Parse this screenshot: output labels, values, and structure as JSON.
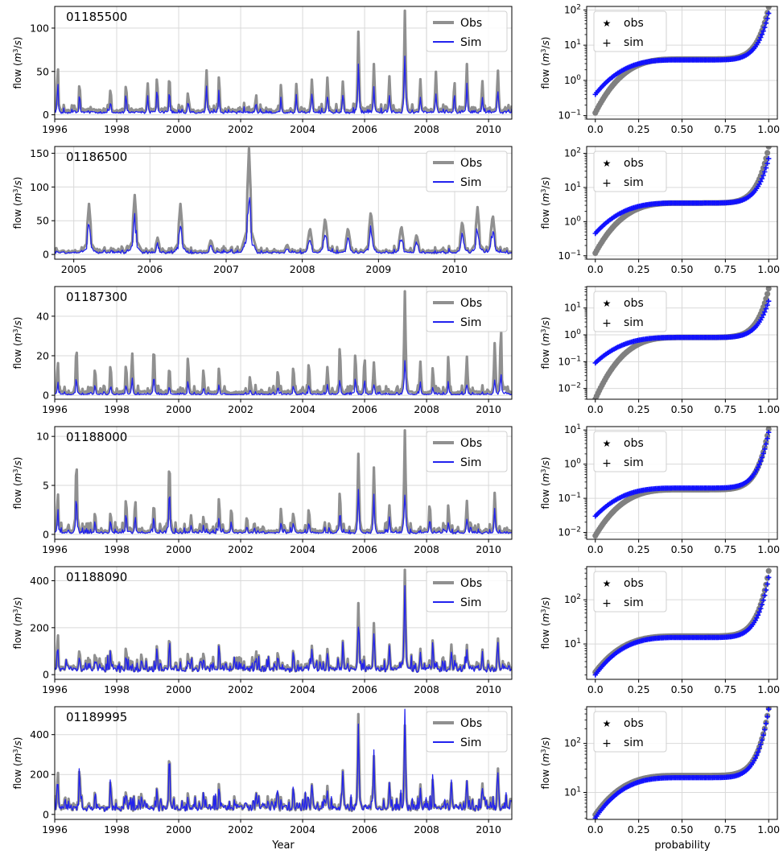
{
  "figure": {
    "xlabel_left": "Year",
    "xlabel_right": "probability"
  },
  "colors": {
    "obs_line": "#909090",
    "sim_line": "#2222ee",
    "obs_marker": "#808080",
    "sim_marker": "#1010ff",
    "grid": "#d9d9d9"
  },
  "chart_data": [
    {
      "type": "line",
      "panel": "timeseries",
      "title": "01185500",
      "xlabel": "",
      "ylabel": "flow (m³/s)",
      "xlim": [
        1996.0,
        2010.75
      ],
      "ylim": [
        -5,
        125
      ],
      "yticks": [
        0,
        50,
        100
      ],
      "xticks": [
        1996,
        1998,
        2000,
        2002,
        2004,
        2006,
        2008,
        2010
      ],
      "legend": "top-right",
      "grid": true,
      "base": 6,
      "noise": 4,
      "peaks": [
        [
          1996.1,
          58
        ],
        [
          1996.8,
          40
        ],
        [
          1997.8,
          33
        ],
        [
          1998.3,
          38
        ],
        [
          1999.0,
          38
        ],
        [
          1999.3,
          47
        ],
        [
          1999.7,
          50
        ],
        [
          2000.3,
          28
        ],
        [
          2000.9,
          52
        ],
        [
          2001.3,
          48
        ],
        [
          2002.5,
          25
        ],
        [
          2003.3,
          37
        ],
        [
          2003.8,
          38
        ],
        [
          2004.3,
          43
        ],
        [
          2004.8,
          45
        ],
        [
          2005.3,
          40
        ],
        [
          2005.8,
          99
        ],
        [
          2006.3,
          60
        ],
        [
          2006.8,
          45
        ],
        [
          2007.3,
          121
        ],
        [
          2007.8,
          41
        ],
        [
          2008.3,
          50
        ],
        [
          2008.9,
          41
        ],
        [
          2009.3,
          60
        ],
        [
          2009.8,
          40
        ],
        [
          2010.3,
          53
        ]
      ],
      "series": [
        {
          "name": "Obs",
          "values_source": "peaks"
        },
        {
          "name": "Sim",
          "scale": 0.55
        }
      ]
    },
    {
      "type": "scatter",
      "panel": "fdc",
      "xlabel": "",
      "ylabel": "flow (m³/s)",
      "xlim": [
        -0.05,
        1.05
      ],
      "yscale": "log",
      "ylim_exp": [
        -1.1,
        2.1
      ],
      "ytick_exps": [
        -1,
        0,
        1,
        2
      ],
      "xticks": [
        "0.0",
        "0.25",
        "0.50",
        "0.75",
        "1.00"
      ],
      "legend": "top-left",
      "series": [
        {
          "name": "obs",
          "min": 0.12,
          "max": 121,
          "median": 4.0
        },
        {
          "name": "sim",
          "min": 0.4,
          "max": 80,
          "median": 3.8
        }
      ]
    },
    {
      "type": "line",
      "panel": "timeseries",
      "title": "01186500",
      "xlabel": "",
      "ylabel": "flow (m³/s)",
      "xlim": [
        2004.75,
        2010.75
      ],
      "ylim": [
        -7,
        160
      ],
      "yticks": [
        0,
        50,
        100,
        150
      ],
      "xticks": [
        2005,
        2006,
        2007,
        2008,
        2009,
        2010
      ],
      "legend": "top-right",
      "grid": true,
      "base": 5,
      "noise": 4,
      "peaks": [
        [
          2005.2,
          75
        ],
        [
          2005.8,
          88
        ],
        [
          2006.1,
          25
        ],
        [
          2006.4,
          75
        ],
        [
          2006.8,
          22
        ],
        [
          2007.3,
          157
        ],
        [
          2007.8,
          15
        ],
        [
          2008.1,
          40
        ],
        [
          2008.3,
          55
        ],
        [
          2008.6,
          40
        ],
        [
          2008.9,
          65
        ],
        [
          2009.3,
          43
        ],
        [
          2009.5,
          30
        ],
        [
          2010.1,
          50
        ],
        [
          2010.3,
          70
        ],
        [
          2010.5,
          60
        ]
      ],
      "series": [
        {
          "name": "Obs",
          "values_source": "peaks"
        },
        {
          "name": "Sim",
          "scale": 0.6
        }
      ]
    },
    {
      "type": "scatter",
      "panel": "fdc",
      "xlabel": "",
      "ylabel": "flow (m³/s)",
      "xlim": [
        -0.05,
        1.05
      ],
      "yscale": "log",
      "ylim_exp": [
        -1.1,
        2.2
      ],
      "ytick_exps": [
        -1,
        0,
        1,
        2
      ],
      "xticks": [
        "0.0",
        "0.25",
        "0.50",
        "0.75",
        "1.00"
      ],
      "legend": "top-left",
      "series": [
        {
          "name": "obs",
          "min": 0.12,
          "max": 157,
          "median": 3.5
        },
        {
          "name": "sim",
          "min": 0.45,
          "max": 70,
          "median": 3.5
        }
      ]
    },
    {
      "type": "line",
      "panel": "timeseries",
      "title": "01187300",
      "xlabel": "",
      "ylabel": "flow (m³/s)",
      "xlim": [
        1996.0,
        2010.75
      ],
      "ylim": [
        -2,
        55
      ],
      "yticks": [
        0,
        20,
        40
      ],
      "xticks": [
        1996,
        1998,
        2000,
        2002,
        2004,
        2006,
        2008,
        2010
      ],
      "legend": "top-right",
      "grid": true,
      "base": 1.5,
      "noise": 2,
      "peaks": [
        [
          1996.1,
          18
        ],
        [
          1996.7,
          27
        ],
        [
          1997.3,
          15
        ],
        [
          1997.8,
          17
        ],
        [
          1998.3,
          17
        ],
        [
          1998.5,
          22
        ],
        [
          1999.2,
          27
        ],
        [
          1999.7,
          16
        ],
        [
          2000.3,
          21
        ],
        [
          2000.8,
          14
        ],
        [
          2001.3,
          15
        ],
        [
          2002.3,
          10
        ],
        [
          2003.2,
          14
        ],
        [
          2003.7,
          16
        ],
        [
          2004.2,
          18
        ],
        [
          2004.8,
          15
        ],
        [
          2005.2,
          27
        ],
        [
          2005.7,
          23
        ],
        [
          2006.0,
          21
        ],
        [
          2006.3,
          17
        ],
        [
          2007.3,
          53
        ],
        [
          2007.8,
          17
        ],
        [
          2008.2,
          15
        ],
        [
          2008.7,
          21
        ],
        [
          2009.3,
          20
        ],
        [
          2010.2,
          28
        ],
        [
          2010.4,
          37
        ]
      ],
      "series": [
        {
          "name": "Obs",
          "values_source": "peaks"
        },
        {
          "name": "Sim",
          "scale": 0.33
        }
      ]
    },
    {
      "type": "scatter",
      "panel": "fdc",
      "xlabel": "",
      "ylabel": "flow (m³/s)",
      "xlim": [
        -0.05,
        1.05
      ],
      "yscale": "log",
      "ylim_exp": [
        -2.4,
        1.8
      ],
      "ytick_exps": [
        -2,
        -1,
        0,
        1
      ],
      "xticks": [
        "0.0",
        "0.25",
        "0.50",
        "0.75",
        "1.00"
      ],
      "legend": "top-left",
      "series": [
        {
          "name": "obs",
          "min": 0.004,
          "max": 53,
          "median": 0.8
        },
        {
          "name": "sim",
          "min": 0.09,
          "max": 18,
          "median": 0.8
        }
      ]
    },
    {
      "type": "line",
      "panel": "timeseries",
      "title": "01188000",
      "xlabel": "",
      "ylabel": "flow (m³/s)",
      "xlim": [
        1996.0,
        2010.75
      ],
      "ylim": [
        -0.5,
        11
      ],
      "yticks": [
        0,
        5,
        10
      ],
      "xticks": [
        1996,
        1998,
        2000,
        2002,
        2004,
        2006,
        2008,
        2010
      ],
      "legend": "top-right",
      "grid": true,
      "base": 0.3,
      "noise": 0.5,
      "peaks": [
        [
          1996.1,
          4.5
        ],
        [
          1996.7,
          8.3
        ],
        [
          1997.3,
          2.5
        ],
        [
          1997.8,
          2.5
        ],
        [
          1998.3,
          4.0
        ],
        [
          1998.6,
          3.8
        ],
        [
          1999.2,
          3.5
        ],
        [
          1999.7,
          8.3
        ],
        [
          2000.4,
          2.0
        ],
        [
          2000.8,
          2.0
        ],
        [
          2001.3,
          4.0
        ],
        [
          2001.7,
          3.0
        ],
        [
          2002.2,
          2.0
        ],
        [
          2003.3,
          2.8
        ],
        [
          2003.7,
          2.5
        ],
        [
          2004.2,
          2.9
        ],
        [
          2005.2,
          4.8
        ],
        [
          2005.8,
          8.5
        ],
        [
          2006.3,
          7.0
        ],
        [
          2006.8,
          3.0
        ],
        [
          2007.3,
          10.7
        ],
        [
          2008.1,
          3.5
        ],
        [
          2008.7,
          3.2
        ],
        [
          2009.3,
          3.5
        ],
        [
          2010.2,
          4.5
        ]
      ],
      "series": [
        {
          "name": "Obs",
          "values_source": "peaks"
        },
        {
          "name": "Sim",
          "scale": 0.5
        }
      ]
    },
    {
      "type": "scatter",
      "panel": "fdc",
      "xlabel": "",
      "ylabel": "flow (m³/s)",
      "xlim": [
        -0.05,
        1.05
      ],
      "yscale": "log",
      "ylim_exp": [
        -2.2,
        1.1
      ],
      "ytick_exps": [
        -2,
        -1,
        0,
        1
      ],
      "xticks": [
        "0.0",
        "0.25",
        "0.50",
        "0.75",
        "1.00"
      ],
      "legend": "top-left",
      "series": [
        {
          "name": "obs",
          "min": 0.008,
          "max": 10.7,
          "median": 0.18
        },
        {
          "name": "sim",
          "min": 0.03,
          "max": 8.5,
          "median": 0.2
        }
      ]
    },
    {
      "type": "line",
      "panel": "timeseries",
      "title": "01188090",
      "xlabel": "",
      "ylabel": "flow (m³/s)",
      "xlim": [
        1996.0,
        2010.75
      ],
      "ylim": [
        -20,
        460
      ],
      "yticks": [
        0,
        200,
        400
      ],
      "xticks": [
        1996,
        1998,
        2000,
        2002,
        2004,
        2006,
        2008,
        2010
      ],
      "legend": "top-right",
      "grid": true,
      "base": 30,
      "noise": 30,
      "peaks": [
        [
          1996.1,
          185
        ],
        [
          1996.8,
          120
        ],
        [
          1997.3,
          100
        ],
        [
          1997.8,
          120
        ],
        [
          1998.3,
          130
        ],
        [
          1998.8,
          100
        ],
        [
          1999.3,
          140
        ],
        [
          1999.7,
          185
        ],
        [
          2000.3,
          100
        ],
        [
          2000.8,
          100
        ],
        [
          2001.3,
          140
        ],
        [
          2001.8,
          80
        ],
        [
          2002.5,
          110
        ],
        [
          2003.2,
          110
        ],
        [
          2003.7,
          120
        ],
        [
          2004.3,
          130
        ],
        [
          2004.8,
          115
        ],
        [
          2005.3,
          150
        ],
        [
          2005.8,
          315
        ],
        [
          2006.3,
          225
        ],
        [
          2006.8,
          130
        ],
        [
          2007.3,
          450
        ],
        [
          2007.8,
          110
        ],
        [
          2008.2,
          160
        ],
        [
          2008.8,
          130
        ],
        [
          2009.3,
          130
        ],
        [
          2009.8,
          110
        ],
        [
          2010.3,
          160
        ]
      ],
      "series": [
        {
          "name": "Obs",
          "values_source": "peaks"
        },
        {
          "name": "Sim",
          "scale": 0.85
        }
      ]
    },
    {
      "type": "scatter",
      "panel": "fdc",
      "xlabel": "",
      "ylabel": "flow (m³/s)",
      "xlim": [
        -0.05,
        1.05
      ],
      "yscale": "log",
      "ylim_exp": [
        0.2,
        2.75
      ],
      "ytick_exps": [
        1,
        2
      ],
      "xticks": [
        "0.0",
        "0.25",
        "0.50",
        "0.75",
        "1.00"
      ],
      "legend": "top-left",
      "series": [
        {
          "name": "obs",
          "min": 2.3,
          "max": 450,
          "median": 15
        },
        {
          "name": "sim",
          "min": 2.0,
          "max": 320,
          "median": 14
        }
      ]
    },
    {
      "type": "line",
      "panel": "timeseries",
      "title": "01189995",
      "xlabel": "Year",
      "ylabel": "flow (m³/s)",
      "xlim": [
        1996.0,
        2010.75
      ],
      "ylim": [
        -25,
        540
      ],
      "yticks": [
        0,
        200,
        400
      ],
      "xticks": [
        1996,
        1998,
        2000,
        2002,
        2004,
        2006,
        2008,
        2010
      ],
      "legend": "top-right",
      "grid": true,
      "base": 40,
      "noise": 35,
      "peaks": [
        [
          1996.1,
          230
        ],
        [
          1996.8,
          260
        ],
        [
          1997.3,
          130
        ],
        [
          1997.8,
          190
        ],
        [
          1998.3,
          130
        ],
        [
          1998.8,
          120
        ],
        [
          1999.3,
          150
        ],
        [
          1999.7,
          345
        ],
        [
          2000.3,
          120
        ],
        [
          2000.8,
          120
        ],
        [
          2001.3,
          170
        ],
        [
          2001.8,
          100
        ],
        [
          2002.5,
          120
        ],
        [
          2003.2,
          130
        ],
        [
          2003.7,
          150
        ],
        [
          2004.3,
          160
        ],
        [
          2004.8,
          150
        ],
        [
          2005.3,
          230
        ],
        [
          2005.8,
          520
        ],
        [
          2006.3,
          300
        ],
        [
          2006.8,
          160
        ],
        [
          2007.3,
          450
        ],
        [
          2007.8,
          150
        ],
        [
          2008.2,
          190
        ],
        [
          2008.8,
          160
        ],
        [
          2009.3,
          170
        ],
        [
          2009.8,
          160
        ],
        [
          2010.3,
          240
        ]
      ],
      "series": [
        {
          "name": "Obs",
          "values_source": "peaks"
        },
        {
          "name": "Sim",
          "scale": 0.95
        }
      ]
    },
    {
      "type": "scatter",
      "panel": "fdc",
      "xlabel": "probability",
      "ylabel": "flow (m³/s)",
      "xlim": [
        -0.05,
        1.05
      ],
      "yscale": "log",
      "ylim_exp": [
        0.45,
        2.75
      ],
      "ytick_exps": [
        1,
        2
      ],
      "xticks": [
        "0.0",
        "0.25",
        "0.50",
        "0.75",
        "1.00"
      ],
      "legend": "top-left",
      "series": [
        {
          "name": "obs",
          "min": 3.5,
          "max": 520,
          "median": 22
        },
        {
          "name": "sim",
          "min": 3.0,
          "max": 500,
          "median": 20
        }
      ]
    }
  ]
}
